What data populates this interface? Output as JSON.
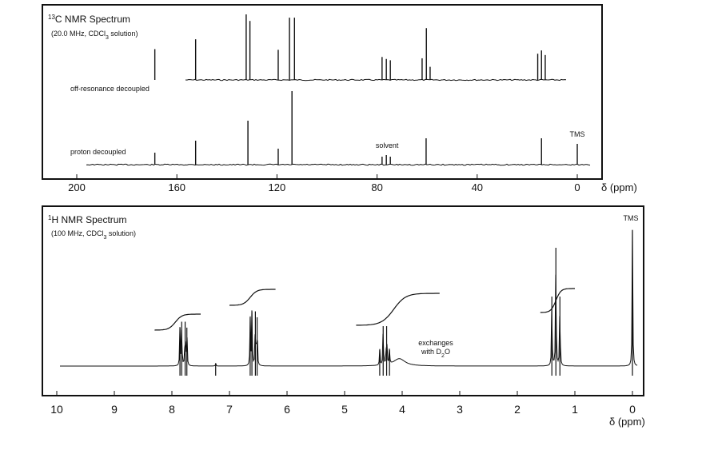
{
  "chart_data": [
    {
      "type": "line",
      "title_pre": "13",
      "title_main": "C NMR Spectrum",
      "subtitle_pre": "(20.0 MHz, CDCl",
      "subtitle_sub": "3",
      "subtitle_post": " solution)",
      "xlabel": "δ (ppm)",
      "xlim": [
        235,
        -10
      ],
      "x_ticks": [
        {
          "v": 200,
          "label": "200"
        },
        {
          "v": 160,
          "label": "160"
        },
        {
          "v": 120,
          "label": "120"
        },
        {
          "v": 80,
          "label": "80"
        },
        {
          "v": 40,
          "label": "40"
        },
        {
          "v": 0,
          "label": "0"
        }
      ],
      "series": [
        {
          "name": "off-resonance decoupled",
          "peaks": [
            {
              "x": 168.8,
              "h": 0.47
            },
            {
              "x": 152.5,
              "h": 0.62
            },
            {
              "x": 132.3,
              "h": 1.0
            },
            {
              "x": 130.8,
              "h": 0.9
            },
            {
              "x": 119.5,
              "h": 0.46
            },
            {
              "x": 115.0,
              "h": 0.95
            },
            {
              "x": 113.0,
              "h": 0.95
            },
            {
              "x": 78.0,
              "h": 0.35
            },
            {
              "x": 76.3,
              "h": 0.32
            },
            {
              "x": 74.7,
              "h": 0.3
            },
            {
              "x": 62.0,
              "h": 0.33
            },
            {
              "x": 60.3,
              "h": 0.79
            },
            {
              "x": 58.8,
              "h": 0.2
            },
            {
              "x": 15.8,
              "h": 0.4
            },
            {
              "x": 14.3,
              "h": 0.45
            },
            {
              "x": 12.8,
              "h": 0.38
            }
          ]
        },
        {
          "name": "proton decoupled",
          "peaks": [
            {
              "x": 168.8,
              "h": 0.15
            },
            {
              "x": 152.5,
              "h": 0.3
            },
            {
              "x": 131.6,
              "h": 0.55
            },
            {
              "x": 119.5,
              "h": 0.2
            },
            {
              "x": 114.0,
              "h": 0.92
            },
            {
              "x": 78.0,
              "h": 0.1
            },
            {
              "x": 76.3,
              "h": 0.12
            },
            {
              "x": 74.7,
              "h": 0.1
            },
            {
              "x": 60.4,
              "h": 0.33
            },
            {
              "x": 14.3,
              "h": 0.33
            },
            {
              "x": 0.0,
              "h": 0.26
            }
          ]
        }
      ],
      "annotations": [
        {
          "text": "solvent",
          "x": 76,
          "series": 1
        },
        {
          "text": "TMS",
          "x": 0,
          "series": 1
        }
      ]
    },
    {
      "type": "line",
      "title_pre": "1",
      "title_main": "H NMR Spectrum",
      "subtitle_pre": "(100 MHz, CDCl",
      "subtitle_sub": "3",
      "subtitle_post": " solution)",
      "xlabel": "δ (ppm)",
      "xlim": [
        10,
        0
      ],
      "x_ticks": [
        {
          "v": 10,
          "label": "10"
        },
        {
          "v": 9,
          "label": "9"
        },
        {
          "v": 8,
          "label": "8"
        },
        {
          "v": 7,
          "label": "7"
        },
        {
          "v": 6,
          "label": "6"
        },
        {
          "v": 5,
          "label": "5"
        },
        {
          "v": 4,
          "label": "4"
        },
        {
          "v": 3,
          "label": "3"
        },
        {
          "v": 2,
          "label": "2"
        },
        {
          "v": 1,
          "label": "1"
        },
        {
          "v": 0,
          "label": "0"
        }
      ],
      "peaks": [
        {
          "x": 7.86,
          "h": 0.26
        },
        {
          "x": 7.83,
          "h": 0.3
        },
        {
          "x": 7.77,
          "h": 0.3
        },
        {
          "x": 7.74,
          "h": 0.26
        },
        {
          "x": 7.24,
          "h": 0.02
        },
        {
          "x": 6.64,
          "h": 0.33
        },
        {
          "x": 6.61,
          "h": 0.37
        },
        {
          "x": 6.55,
          "h": 0.37
        },
        {
          "x": 6.52,
          "h": 0.33
        },
        {
          "x": 4.39,
          "h": 0.11
        },
        {
          "x": 4.33,
          "h": 0.27
        },
        {
          "x": 4.27,
          "h": 0.27
        },
        {
          "x": 4.22,
          "h": 0.11
        },
        {
          "x": 1.4,
          "h": 0.47
        },
        {
          "x": 1.33,
          "h": 0.8
        },
        {
          "x": 1.26,
          "h": 0.47
        },
        {
          "x": 0.0,
          "h": 0.92
        }
      ],
      "broad_peaks": [
        {
          "x": 4.05,
          "h": 0.05,
          "w": 0.12
        }
      ],
      "integrals": [
        {
          "from": 8.3,
          "to": 7.5,
          "rise": 0.2
        },
        {
          "from": 7.0,
          "to": 6.2,
          "rise": 0.2
        },
        {
          "from": 4.8,
          "to": 3.35,
          "rise": 0.4
        },
        {
          "from": 1.6,
          "to": 1.0,
          "rise": 0.3
        }
      ],
      "annotations": [
        {
          "text": "TMS",
          "x": 0
        }
      ],
      "note_line1": "exchanges",
      "note_line2_pre": "with D",
      "note_line2_sub": "2",
      "note_line2_post": "O"
    }
  ]
}
